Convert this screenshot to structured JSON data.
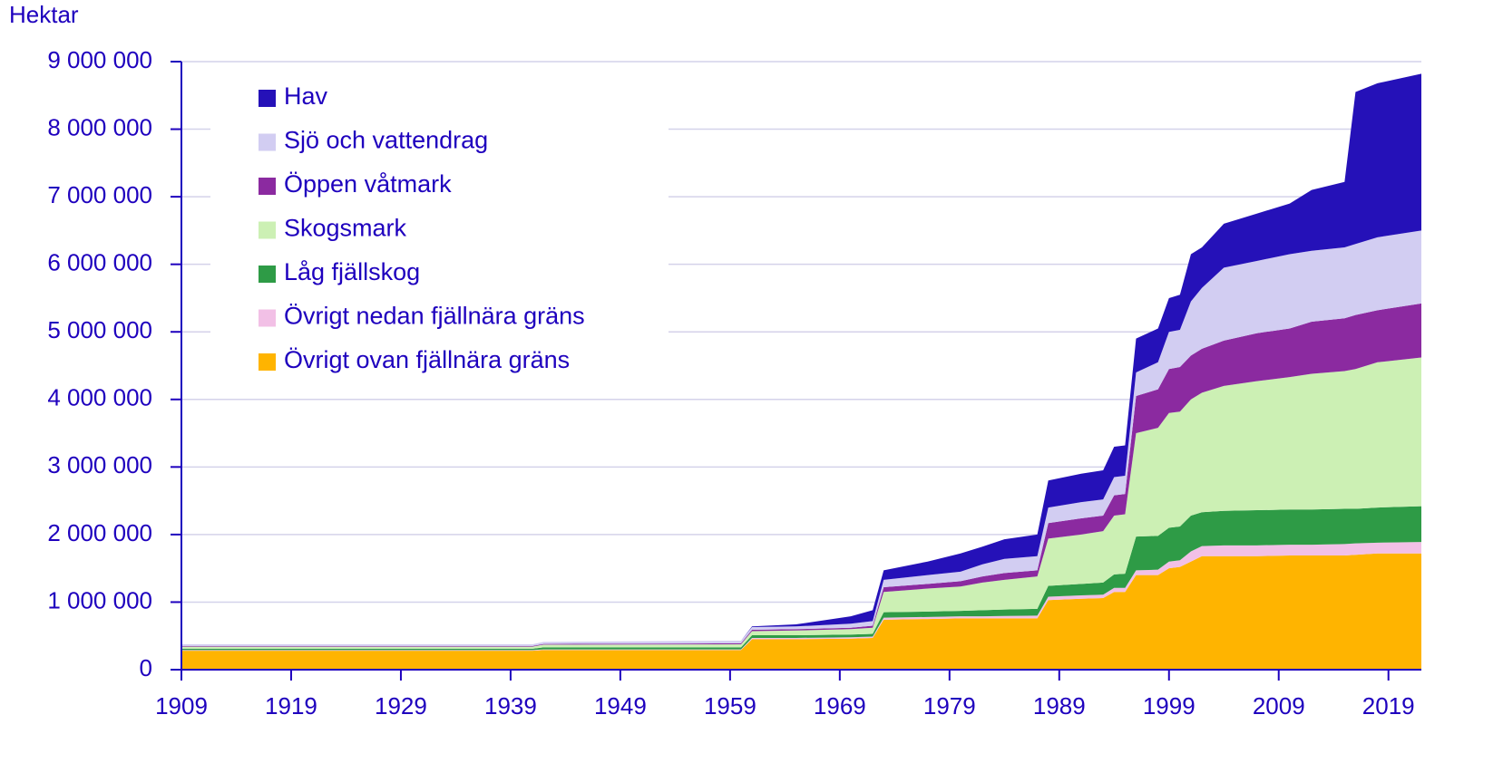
{
  "chart_data": {
    "type": "stacked-area",
    "y_axis_label": "Hektar",
    "x": [
      1909,
      1941,
      1942,
      1960,
      1961,
      1965,
      1970,
      1972,
      1973,
      1977,
      1980,
      1982,
      1984,
      1987,
      1988,
      1991,
      1993,
      1994,
      1995,
      1996,
      1998,
      1999,
      2000,
      2001,
      2002,
      2004,
      2007,
      2010,
      2012,
      2015,
      2016,
      2018,
      2022
    ],
    "series": [
      {
        "name": "Övrigt ovan fjällnära gräns",
        "color": "#ffb400",
        "values": [
          280000,
          280000,
          290000,
          290000,
          450000,
          450000,
          460000,
          470000,
          740000,
          750000,
          760000,
          760000,
          760000,
          760000,
          1030000,
          1050000,
          1060000,
          1150000,
          1150000,
          1400000,
          1400000,
          1500000,
          1520000,
          1600000,
          1680000,
          1680000,
          1680000,
          1690000,
          1690000,
          1690000,
          1700000,
          1720000,
          1720000
        ]
      },
      {
        "name": "Övrigt nedan fjällnära gräns",
        "color": "#f2c0e6",
        "values": [
          10000,
          10000,
          10000,
          10000,
          20000,
          20000,
          20000,
          20000,
          30000,
          30000,
          30000,
          30000,
          35000,
          40000,
          50000,
          50000,
          50000,
          60000,
          60000,
          70000,
          80000,
          100000,
          100000,
          150000,
          150000,
          160000,
          160000,
          160000,
          160000,
          170000,
          170000,
          160000,
          170000
        ]
      },
      {
        "name": "Låg fjällskog",
        "color": "#2e9b46",
        "values": [
          20000,
          20000,
          30000,
          30000,
          40000,
          40000,
          40000,
          40000,
          80000,
          80000,
          80000,
          90000,
          95000,
          100000,
          160000,
          170000,
          180000,
          200000,
          210000,
          500000,
          500000,
          500000,
          500000,
          530000,
          500000,
          510000,
          520000,
          520000,
          520000,
          520000,
          510000,
          520000,
          530000
        ]
      },
      {
        "name": "Skogsmark",
        "color": "#ccf0b4",
        "values": [
          30000,
          30000,
          40000,
          45000,
          60000,
          70000,
          80000,
          90000,
          300000,
          340000,
          360000,
          410000,
          440000,
          480000,
          700000,
          730000,
          760000,
          870000,
          880000,
          1530000,
          1600000,
          1700000,
          1700000,
          1720000,
          1770000,
          1850000,
          1910000,
          1960000,
          2010000,
          2040000,
          2070000,
          2150000,
          2200000
        ]
      },
      {
        "name": "Öppen våtmark",
        "color": "#8b2aa0",
        "values": [
          10000,
          10000,
          10000,
          15000,
          20000,
          20000,
          20000,
          30000,
          70000,
          70000,
          80000,
          90000,
          100000,
          90000,
          230000,
          240000,
          230000,
          300000,
          300000,
          550000,
          570000,
          650000,
          660000,
          650000,
          650000,
          670000,
          710000,
          720000,
          770000,
          780000,
          800000,
          770000,
          800000
        ]
      },
      {
        "name": "Sjö och vattendrag",
        "color": "#d2cdf2",
        "values": [
          25000,
          25000,
          30000,
          40000,
          40000,
          40000,
          60000,
          70000,
          110000,
          130000,
          140000,
          180000,
          210000,
          210000,
          230000,
          240000,
          240000,
          270000,
          270000,
          350000,
          400000,
          550000,
          550000,
          800000,
          900000,
          1080000,
          1070000,
          1100000,
          1050000,
          1050000,
          1050000,
          1080000,
          1080000
        ]
      },
      {
        "name": "Hav",
        "color": "#2511b8",
        "values": [
          0,
          0,
          0,
          0,
          10000,
          30000,
          110000,
          160000,
          140000,
          200000,
          270000,
          260000,
          290000,
          320000,
          400000,
          420000,
          430000,
          450000,
          450000,
          500000,
          500000,
          500000,
          520000,
          700000,
          600000,
          650000,
          700000,
          750000,
          900000,
          970000,
          2250000,
          2280000,
          2320000
        ]
      }
    ],
    "xlim": [
      1909,
      2022
    ],
    "xticks": [
      1909,
      1919,
      1929,
      1939,
      1949,
      1959,
      1969,
      1979,
      1989,
      1999,
      2009,
      2019
    ],
    "ylim": [
      0,
      9000000
    ],
    "yticks": [
      0,
      {
        "value": 1000000,
        "label": "1 000 000"
      },
      {
        "value": 2000000,
        "label": "2 000 000"
      },
      {
        "value": 3000000,
        "label": "3 000 000"
      },
      {
        "value": 4000000,
        "label": "4 000 000"
      },
      {
        "value": 5000000,
        "label": "5 000 000"
      },
      {
        "value": 6000000,
        "label": "6 000 000"
      },
      {
        "value": 7000000,
        "label": "7 000 000"
      },
      {
        "value": 8000000,
        "label": "8 000 000"
      },
      {
        "value": 9000000,
        "label": "9 000 000"
      }
    ],
    "grid": true,
    "legend": "top-left",
    "legend_order": "reversed"
  }
}
